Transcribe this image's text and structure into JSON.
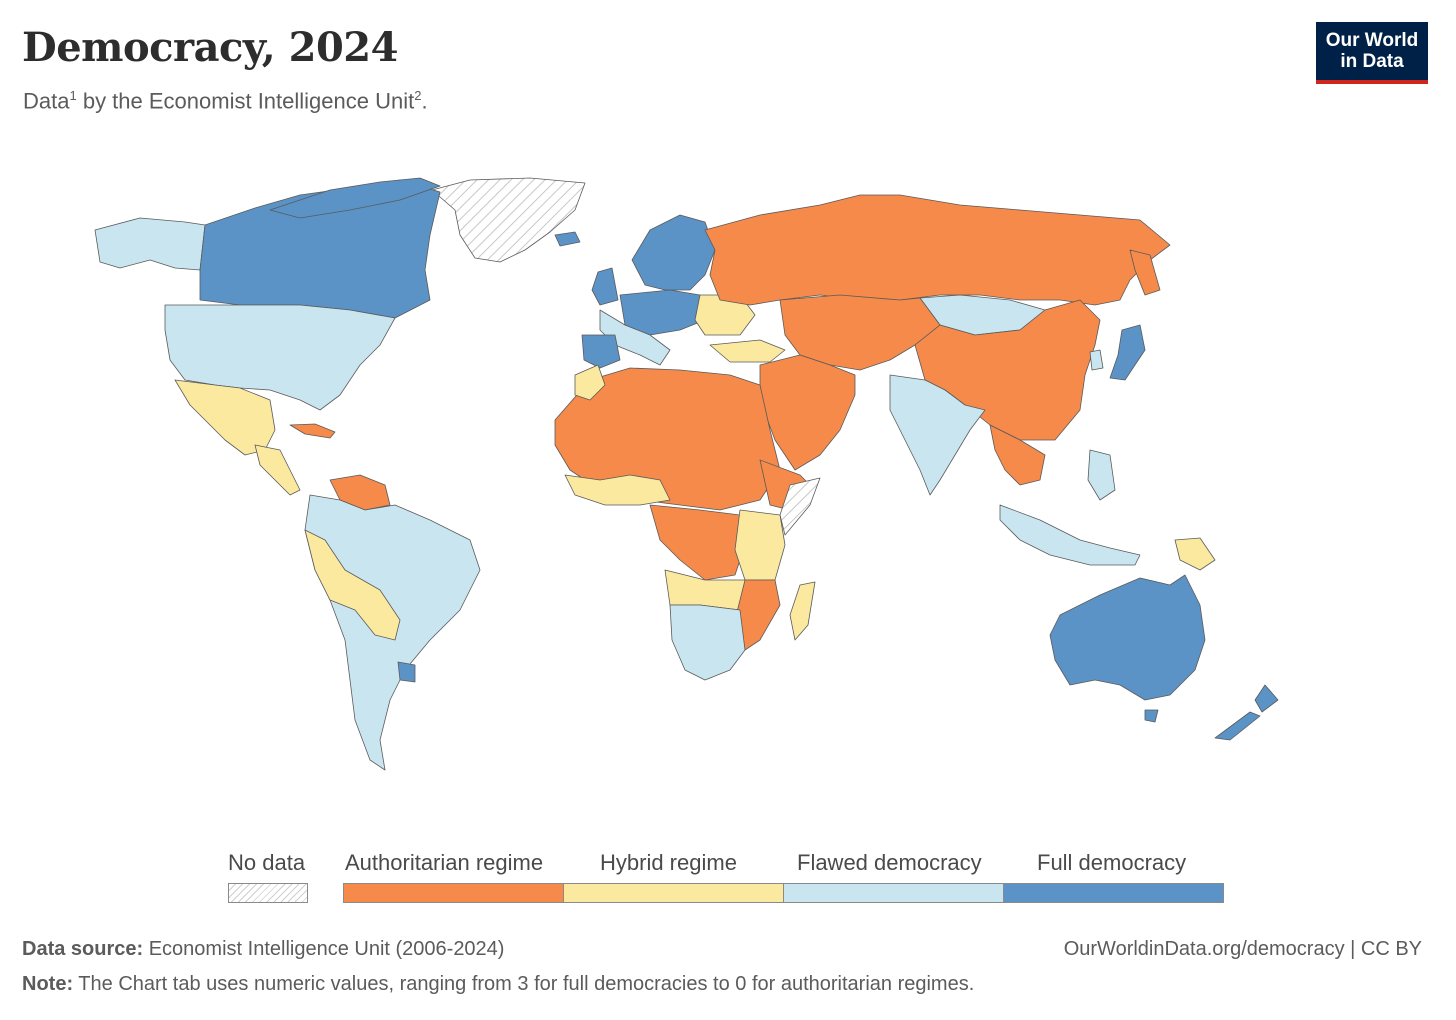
{
  "header": {
    "title": "Democracy, 2024",
    "subtitle_text_1": "Data",
    "subtitle_sup_1": "1",
    "subtitle_text_2": " by the Economist Intelligence Unit",
    "subtitle_sup_2": "2",
    "subtitle_text_3": "."
  },
  "logo": {
    "line1": "Our World",
    "line2": "in Data"
  },
  "legend": {
    "no_data": "No data",
    "categories": [
      {
        "label": "Authoritarian regime",
        "color": "#f58a4b"
      },
      {
        "label": "Hybrid regime",
        "color": "#fbe9a0"
      },
      {
        "label": "Flawed democracy",
        "color": "#c9e6f0"
      },
      {
        "label": "Full democracy",
        "color": "#5b93c7"
      }
    ]
  },
  "colors": {
    "authoritarian": "#f58a4b",
    "hybrid": "#fbe9a0",
    "flawed": "#c9e6f0",
    "full": "#5b93c7",
    "border": "#5a5a5a"
  },
  "footer": {
    "source_label": "Data source:",
    "source_value": " Economist Intelligence Unit (2006-2024)",
    "url": "OurWorldinData.org/democracy | CC BY",
    "note_label": "Note:",
    "note_value": " The Chart tab uses numeric values, ranging from 3 for full democracies to 0 for authoritarian regimes."
  }
}
